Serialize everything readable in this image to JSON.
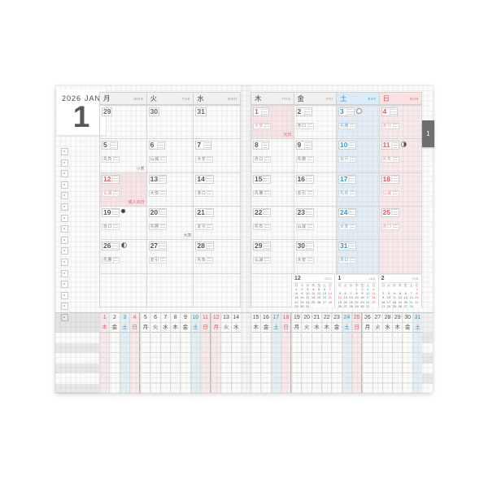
{
  "header": {
    "year": "2026",
    "month_abbr": "JAN",
    "month_number": "1",
    "side_tab": "1"
  },
  "weekday_headers": {
    "left": [
      {
        "k": "月",
        "e": "MON",
        "t": "wk"
      },
      {
        "k": "火",
        "e": "TUE",
        "t": "wk"
      },
      {
        "k": "水",
        "e": "WED",
        "t": "wk"
      }
    ],
    "right": [
      {
        "k": "木",
        "e": "THU",
        "t": "wk"
      },
      {
        "k": "金",
        "e": "FRI",
        "t": "wk"
      },
      {
        "k": "土",
        "e": "SAT",
        "t": "sat"
      },
      {
        "k": "日",
        "e": "SUN",
        "t": "sun"
      }
    ]
  },
  "calendar": {
    "rows": [
      {
        "left": [
          {
            "d": "29",
            "t": "prev"
          },
          {
            "d": "30",
            "t": "prev"
          },
          {
            "d": "31",
            "t": "prev"
          }
        ],
        "right": [
          {
            "d": "1",
            "t": "hol",
            "rokuyo": "大安",
            "note": "元日",
            "noteT": "red"
          },
          {
            "d": "2",
            "t": "wk",
            "rokuyo": "赤口"
          },
          {
            "d": "3",
            "t": "sat",
            "rokuyo": "先勝",
            "moon": "moon-full"
          },
          {
            "d": "4",
            "t": "sun",
            "rokuyo": "友引"
          }
        ]
      },
      {
        "left": [
          {
            "d": "5",
            "t": "wk",
            "rokuyo": "先負",
            "note": "小寒",
            "noteT": "plain"
          },
          {
            "d": "6",
            "t": "wk",
            "rokuyo": "仏滅"
          },
          {
            "d": "7",
            "t": "wk",
            "rokuyo": "大安"
          }
        ],
        "right": [
          {
            "d": "8",
            "t": "wk",
            "rokuyo": "赤口"
          },
          {
            "d": "9",
            "t": "wk",
            "rokuyo": "先勝"
          },
          {
            "d": "10",
            "t": "sat",
            "rokuyo": "友引"
          },
          {
            "d": "11",
            "t": "sun",
            "rokuyo": "先負",
            "moon": "moon-last"
          }
        ]
      },
      {
        "left": [
          {
            "d": "12",
            "t": "hol",
            "rokuyo": "仏滅",
            "note": "成人の日",
            "noteT": "red"
          },
          {
            "d": "13",
            "t": "wk",
            "rokuyo": "大安"
          },
          {
            "d": "14",
            "t": "wk",
            "rokuyo": "赤口"
          }
        ],
        "right": [
          {
            "d": "15",
            "t": "wk",
            "rokuyo": "先勝"
          },
          {
            "d": "16",
            "t": "wk",
            "rokuyo": "友引"
          },
          {
            "d": "17",
            "t": "sat",
            "rokuyo": "先負"
          },
          {
            "d": "18",
            "t": "sun",
            "rokuyo": "仏滅"
          }
        ]
      },
      {
        "left": [
          {
            "d": "19",
            "t": "wk",
            "rokuyo": "赤口",
            "moon": "moon-new"
          },
          {
            "d": "20",
            "t": "wk",
            "rokuyo": "先勝",
            "note": "大寒",
            "noteT": "plain"
          },
          {
            "d": "21",
            "t": "wk",
            "rokuyo": "友引"
          }
        ],
        "right": [
          {
            "d": "22",
            "t": "wk",
            "rokuyo": "先負"
          },
          {
            "d": "23",
            "t": "wk",
            "rokuyo": "仏滅"
          },
          {
            "d": "24",
            "t": "sat",
            "rokuyo": "大安"
          },
          {
            "d": "25",
            "t": "sun",
            "rokuyo": "赤口"
          }
        ]
      },
      {
        "left": [
          {
            "d": "26",
            "t": "wk",
            "rokuyo": "先勝",
            "moon": "moon-first"
          },
          {
            "d": "27",
            "t": "wk",
            "rokuyo": "友引"
          },
          {
            "d": "28",
            "t": "wk",
            "rokuyo": "先負"
          }
        ],
        "right": [
          {
            "d": "29",
            "t": "wk",
            "rokuyo": "仏滅"
          },
          {
            "d": "30",
            "t": "wk",
            "rokuyo": "大安"
          },
          {
            "d": "31",
            "t": "sat",
            "rokuyo": "赤口"
          },
          {
            "d": "",
            "t": "empty"
          }
        ]
      },
      {
        "left": [
          {
            "d": "",
            "t": "empty"
          },
          {
            "d": "",
            "t": "empty"
          },
          {
            "d": "",
            "t": "empty"
          }
        ],
        "right": [
          {
            "d": "",
            "t": "empty"
          },
          {
            "d": "",
            "t": "empty"
          },
          {
            "d": "",
            "t": "empty"
          },
          {
            "d": "",
            "t": "empty"
          }
        ]
      }
    ]
  },
  "mini_weekdays": [
    {
      "k": "月",
      "t": "wk"
    },
    {
      "k": "火",
      "t": "wk"
    },
    {
      "k": "水",
      "t": "wk"
    },
    {
      "k": "木",
      "t": "wk"
    },
    {
      "k": "金",
      "t": "wk"
    },
    {
      "k": "土",
      "t": "sat"
    },
    {
      "k": "日",
      "t": "sun"
    }
  ],
  "mini_calendars": [
    {
      "num": "12",
      "en": "DEC",
      "cells": [
        {
          "n": "1",
          "t": "wk"
        },
        {
          "n": "2",
          "t": "wk"
        },
        {
          "n": "3",
          "t": "wk"
        },
        {
          "n": "4",
          "t": "wk"
        },
        {
          "n": "5",
          "t": "wk"
        },
        {
          "n": "6",
          "t": "sat"
        },
        {
          "n": "7",
          "t": "sun"
        },
        {
          "n": "8",
          "t": "wk"
        },
        {
          "n": "9",
          "t": "wk"
        },
        {
          "n": "10",
          "t": "wk"
        },
        {
          "n": "11",
          "t": "wk"
        },
        {
          "n": "12",
          "t": "wk"
        },
        {
          "n": "13",
          "t": "sat"
        },
        {
          "n": "14",
          "t": "sun"
        },
        {
          "n": "15",
          "t": "wk"
        },
        {
          "n": "16",
          "t": "wk"
        },
        {
          "n": "17",
          "t": "wk"
        },
        {
          "n": "18",
          "t": "wk"
        },
        {
          "n": "19",
          "t": "wk"
        },
        {
          "n": "20",
          "t": "sat"
        },
        {
          "n": "21",
          "t": "sun"
        },
        {
          "n": "22",
          "t": "wk"
        },
        {
          "n": "23",
          "t": "wk"
        },
        {
          "n": "24",
          "t": "wk"
        },
        {
          "n": "25",
          "t": "wk"
        },
        {
          "n": "26",
          "t": "wk"
        },
        {
          "n": "27",
          "t": "sat"
        },
        {
          "n": "28",
          "t": "sun"
        },
        {
          "n": "29",
          "t": "wk"
        },
        {
          "n": "30",
          "t": "wk"
        },
        {
          "n": "31",
          "t": "wk"
        },
        {
          "n": "",
          "t": "e"
        },
        {
          "n": "",
          "t": "e"
        },
        {
          "n": "",
          "t": "e"
        },
        {
          "n": "",
          "t": "e"
        }
      ]
    },
    {
      "num": "1",
      "en": "JAN",
      "cells": [
        {
          "n": "",
          "t": "e"
        },
        {
          "n": "",
          "t": "e"
        },
        {
          "n": "",
          "t": "e"
        },
        {
          "n": "1",
          "t": "hol"
        },
        {
          "n": "2",
          "t": "wk"
        },
        {
          "n": "3",
          "t": "sat"
        },
        {
          "n": "4",
          "t": "sun"
        },
        {
          "n": "5",
          "t": "wk"
        },
        {
          "n": "6",
          "t": "wk"
        },
        {
          "n": "7",
          "t": "wk"
        },
        {
          "n": "8",
          "t": "wk"
        },
        {
          "n": "9",
          "t": "wk"
        },
        {
          "n": "10",
          "t": "sat"
        },
        {
          "n": "11",
          "t": "sun"
        },
        {
          "n": "12",
          "t": "hol"
        },
        {
          "n": "13",
          "t": "wk"
        },
        {
          "n": "14",
          "t": "wk"
        },
        {
          "n": "15",
          "t": "wk"
        },
        {
          "n": "16",
          "t": "wk"
        },
        {
          "n": "17",
          "t": "sat"
        },
        {
          "n": "18",
          "t": "sun"
        },
        {
          "n": "19",
          "t": "wk"
        },
        {
          "n": "20",
          "t": "wk"
        },
        {
          "n": "21",
          "t": "wk"
        },
        {
          "n": "22",
          "t": "wk"
        },
        {
          "n": "23",
          "t": "wk"
        },
        {
          "n": "24",
          "t": "sat"
        },
        {
          "n": "25",
          "t": "sun"
        },
        {
          "n": "26",
          "t": "wk"
        },
        {
          "n": "27",
          "t": "wk"
        },
        {
          "n": "28",
          "t": "wk"
        },
        {
          "n": "29",
          "t": "wk"
        },
        {
          "n": "30",
          "t": "wk"
        },
        {
          "n": "31",
          "t": "sat"
        },
        {
          "n": "",
          "t": "e"
        }
      ]
    },
    {
      "num": "2",
      "en": "FEB",
      "cells": [
        {
          "n": "",
          "t": "e"
        },
        {
          "n": "",
          "t": "e"
        },
        {
          "n": "",
          "t": "e"
        },
        {
          "n": "",
          "t": "e"
        },
        {
          "n": "",
          "t": "e"
        },
        {
          "n": "",
          "t": "e"
        },
        {
          "n": "1",
          "t": "sun"
        },
        {
          "n": "2",
          "t": "wk"
        },
        {
          "n": "3",
          "t": "wk"
        },
        {
          "n": "4",
          "t": "wk"
        },
        {
          "n": "5",
          "t": "wk"
        },
        {
          "n": "6",
          "t": "wk"
        },
        {
          "n": "7",
          "t": "sat"
        },
        {
          "n": "8",
          "t": "sun"
        },
        {
          "n": "9",
          "t": "wk"
        },
        {
          "n": "10",
          "t": "wk"
        },
        {
          "n": "11",
          "t": "hol"
        },
        {
          "n": "12",
          "t": "wk"
        },
        {
          "n": "13",
          "t": "wk"
        },
        {
          "n": "14",
          "t": "sat"
        },
        {
          "n": "15",
          "t": "sun"
        },
        {
          "n": "16",
          "t": "wk"
        },
        {
          "n": "17",
          "t": "wk"
        },
        {
          "n": "18",
          "t": "wk"
        },
        {
          "n": "19",
          "t": "wk"
        },
        {
          "n": "20",
          "t": "wk"
        },
        {
          "n": "21",
          "t": "sat"
        },
        {
          "n": "22",
          "t": "sun"
        },
        {
          "n": "23",
          "t": "hol"
        },
        {
          "n": "24",
          "t": "wk"
        },
        {
          "n": "25",
          "t": "wk"
        },
        {
          "n": "26",
          "t": "wk"
        },
        {
          "n": "27",
          "t": "wk"
        },
        {
          "n": "28",
          "t": "sat"
        },
        {
          "n": "",
          "t": "e"
        }
      ]
    }
  ],
  "bottom_strip": {
    "left": [
      {
        "n": "1",
        "k": "木",
        "t": "hol"
      },
      {
        "n": "2",
        "k": "金",
        "t": "wk"
      },
      {
        "n": "3",
        "k": "土",
        "t": "sat"
      },
      {
        "n": "4",
        "k": "日",
        "t": "sun wb"
      },
      {
        "n": "5",
        "k": "月",
        "t": "wk"
      },
      {
        "n": "6",
        "k": "火",
        "t": "wk"
      },
      {
        "n": "7",
        "k": "水",
        "t": "wk"
      },
      {
        "n": "8",
        "k": "木",
        "t": "wk"
      },
      {
        "n": "9",
        "k": "金",
        "t": "wk"
      },
      {
        "n": "10",
        "k": "土",
        "t": "sat"
      },
      {
        "n": "11",
        "k": "日",
        "t": "sun wb"
      },
      {
        "n": "12",
        "k": "月",
        "t": "hol"
      },
      {
        "n": "13",
        "k": "火",
        "t": "wk"
      },
      {
        "n": "14",
        "k": "水",
        "t": "wk"
      }
    ],
    "right": [
      {
        "n": "15",
        "k": "木",
        "t": "wk"
      },
      {
        "n": "16",
        "k": "金",
        "t": "wk"
      },
      {
        "n": "17",
        "k": "土",
        "t": "sat"
      },
      {
        "n": "18",
        "k": "日",
        "t": "sun wb"
      },
      {
        "n": "19",
        "k": "月",
        "t": "wk"
      },
      {
        "n": "20",
        "k": "火",
        "t": "wk"
      },
      {
        "n": "21",
        "k": "水",
        "t": "wk"
      },
      {
        "n": "22",
        "k": "木",
        "t": "wk"
      },
      {
        "n": "23",
        "k": "金",
        "t": "wk"
      },
      {
        "n": "24",
        "k": "土",
        "t": "sat"
      },
      {
        "n": "25",
        "k": "日",
        "t": "sun wb"
      },
      {
        "n": "26",
        "k": "月",
        "t": "wk"
      },
      {
        "n": "27",
        "k": "火",
        "t": "wk"
      },
      {
        "n": "28",
        "k": "水",
        "t": "wk"
      },
      {
        "n": "29",
        "k": "木",
        "t": "wk"
      },
      {
        "n": "30",
        "k": "金",
        "t": "wk"
      },
      {
        "n": "31",
        "k": "土",
        "t": "sat"
      }
    ]
  },
  "checkboxes": [
    "",
    "",
    "",
    "",
    "",
    "",
    "",
    "",
    "",
    "",
    "",
    "",
    "",
    "",
    "",
    ""
  ],
  "tracker_rows": [
    "",
    "g",
    "",
    "g",
    "",
    "g"
  ],
  "margin_rows": [
    "g",
    "",
    "g",
    "",
    "g",
    ""
  ],
  "colors": {
    "accent_blue": "#2f97cb",
    "accent_red": "#e25a68",
    "holiday_bg": "#f9e7e7",
    "saturday_bg": "#edf4fa",
    "sunday_bg": "#fdf0f0",
    "tab_bg": "#6e6e6e",
    "page_bg": "#fbfbfa"
  }
}
